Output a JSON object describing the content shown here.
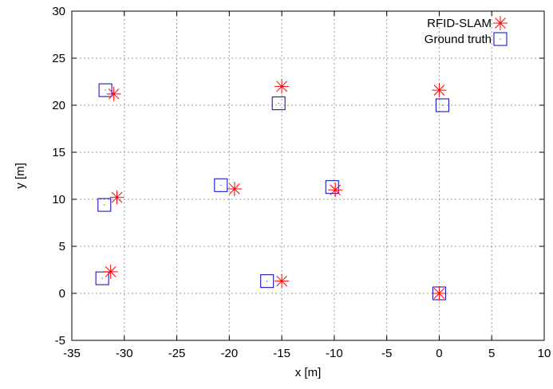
{
  "chart_data": {
    "type": "scatter",
    "xlabel": "x [m]",
    "ylabel": "y [m]",
    "xlim": [
      -35,
      10
    ],
    "ylim": [
      -5,
      30
    ],
    "xticks": [
      -35,
      -30,
      -25,
      -20,
      -15,
      -10,
      -5,
      0,
      5,
      10
    ],
    "yticks": [
      -5,
      0,
      5,
      10,
      15,
      20,
      25,
      30
    ],
    "grid": true,
    "legend_position": "top-right",
    "series": [
      {
        "name": "RFID-SLAM",
        "marker": "asterisk",
        "color": "#ff0000",
        "points": [
          {
            "x": -31,
            "y": 21.2
          },
          {
            "x": -15,
            "y": 22
          },
          {
            "x": 0,
            "y": 21.6
          },
          {
            "x": -30.7,
            "y": 10.2
          },
          {
            "x": -19.5,
            "y": 11.1
          },
          {
            "x": -9.9,
            "y": 11
          },
          {
            "x": -31.3,
            "y": 2.3
          },
          {
            "x": -15,
            "y": 1.3
          },
          {
            "x": 0,
            "y": 0
          }
        ]
      },
      {
        "name": "Ground truth",
        "marker": "square",
        "color": "#0000cc",
        "points": [
          {
            "x": -31.8,
            "y": 21.6
          },
          {
            "x": -15.3,
            "y": 20.2
          },
          {
            "x": 0.3,
            "y": 20
          },
          {
            "x": -31.9,
            "y": 9.4
          },
          {
            "x": -20.8,
            "y": 11.5
          },
          {
            "x": -10.2,
            "y": 11.3
          },
          {
            "x": -32.1,
            "y": 1.6
          },
          {
            "x": -16.4,
            "y": 1.3
          },
          {
            "x": 0,
            "y": 0
          }
        ]
      }
    ]
  }
}
